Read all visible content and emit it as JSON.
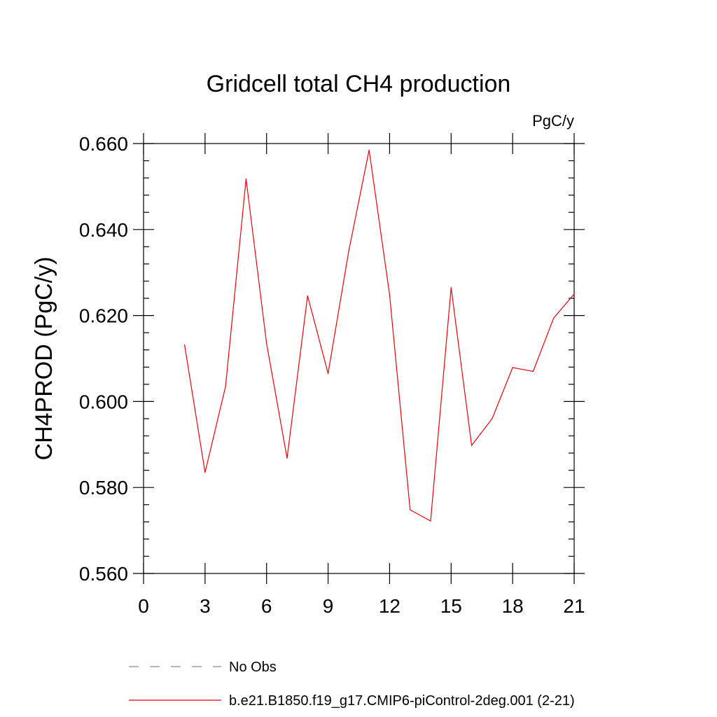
{
  "chart_data": {
    "type": "line",
    "title": "Gridcell total CH4 production",
    "units_label": "PgC/y",
    "ylabel": "CH4PROD  (PgC/y)",
    "xlabel": "",
    "xlim": [
      0,
      21
    ],
    "ylim": [
      0.56,
      0.66
    ],
    "x_ticks": [
      0,
      3,
      6,
      9,
      12,
      15,
      18,
      21
    ],
    "x_tick_labels": [
      "0",
      "3",
      "6",
      "9",
      "12",
      "15",
      "18",
      "21"
    ],
    "y_ticks": [
      0.56,
      0.58,
      0.6,
      0.62,
      0.64,
      0.66
    ],
    "y_tick_labels": [
      "0.560",
      "0.580",
      "0.600",
      "0.620",
      "0.640",
      "0.660"
    ],
    "grid": false,
    "legend_position": "bottom",
    "series": [
      {
        "name": "No Obs",
        "color": "#8080c0",
        "dash": true,
        "x": [],
        "values": []
      },
      {
        "name": "b.e21.B1850.f19_g17.CMIP6-piControl-2deg.001 (2-21)",
        "color": "#e8000b",
        "dash": false,
        "x": [
          2,
          3,
          4,
          5,
          6,
          7,
          8,
          9,
          10,
          11,
          12,
          13,
          14,
          15,
          16,
          17,
          18,
          19,
          20,
          21
        ],
        "values": [
          0.6132,
          0.5835,
          0.6035,
          0.6518,
          0.6135,
          0.5868,
          0.6246,
          0.6065,
          0.6348,
          0.6585,
          0.6248,
          0.5748,
          0.5722,
          0.6265,
          0.5898,
          0.596,
          0.6079,
          0.607,
          0.6194,
          0.625
        ]
      }
    ]
  }
}
